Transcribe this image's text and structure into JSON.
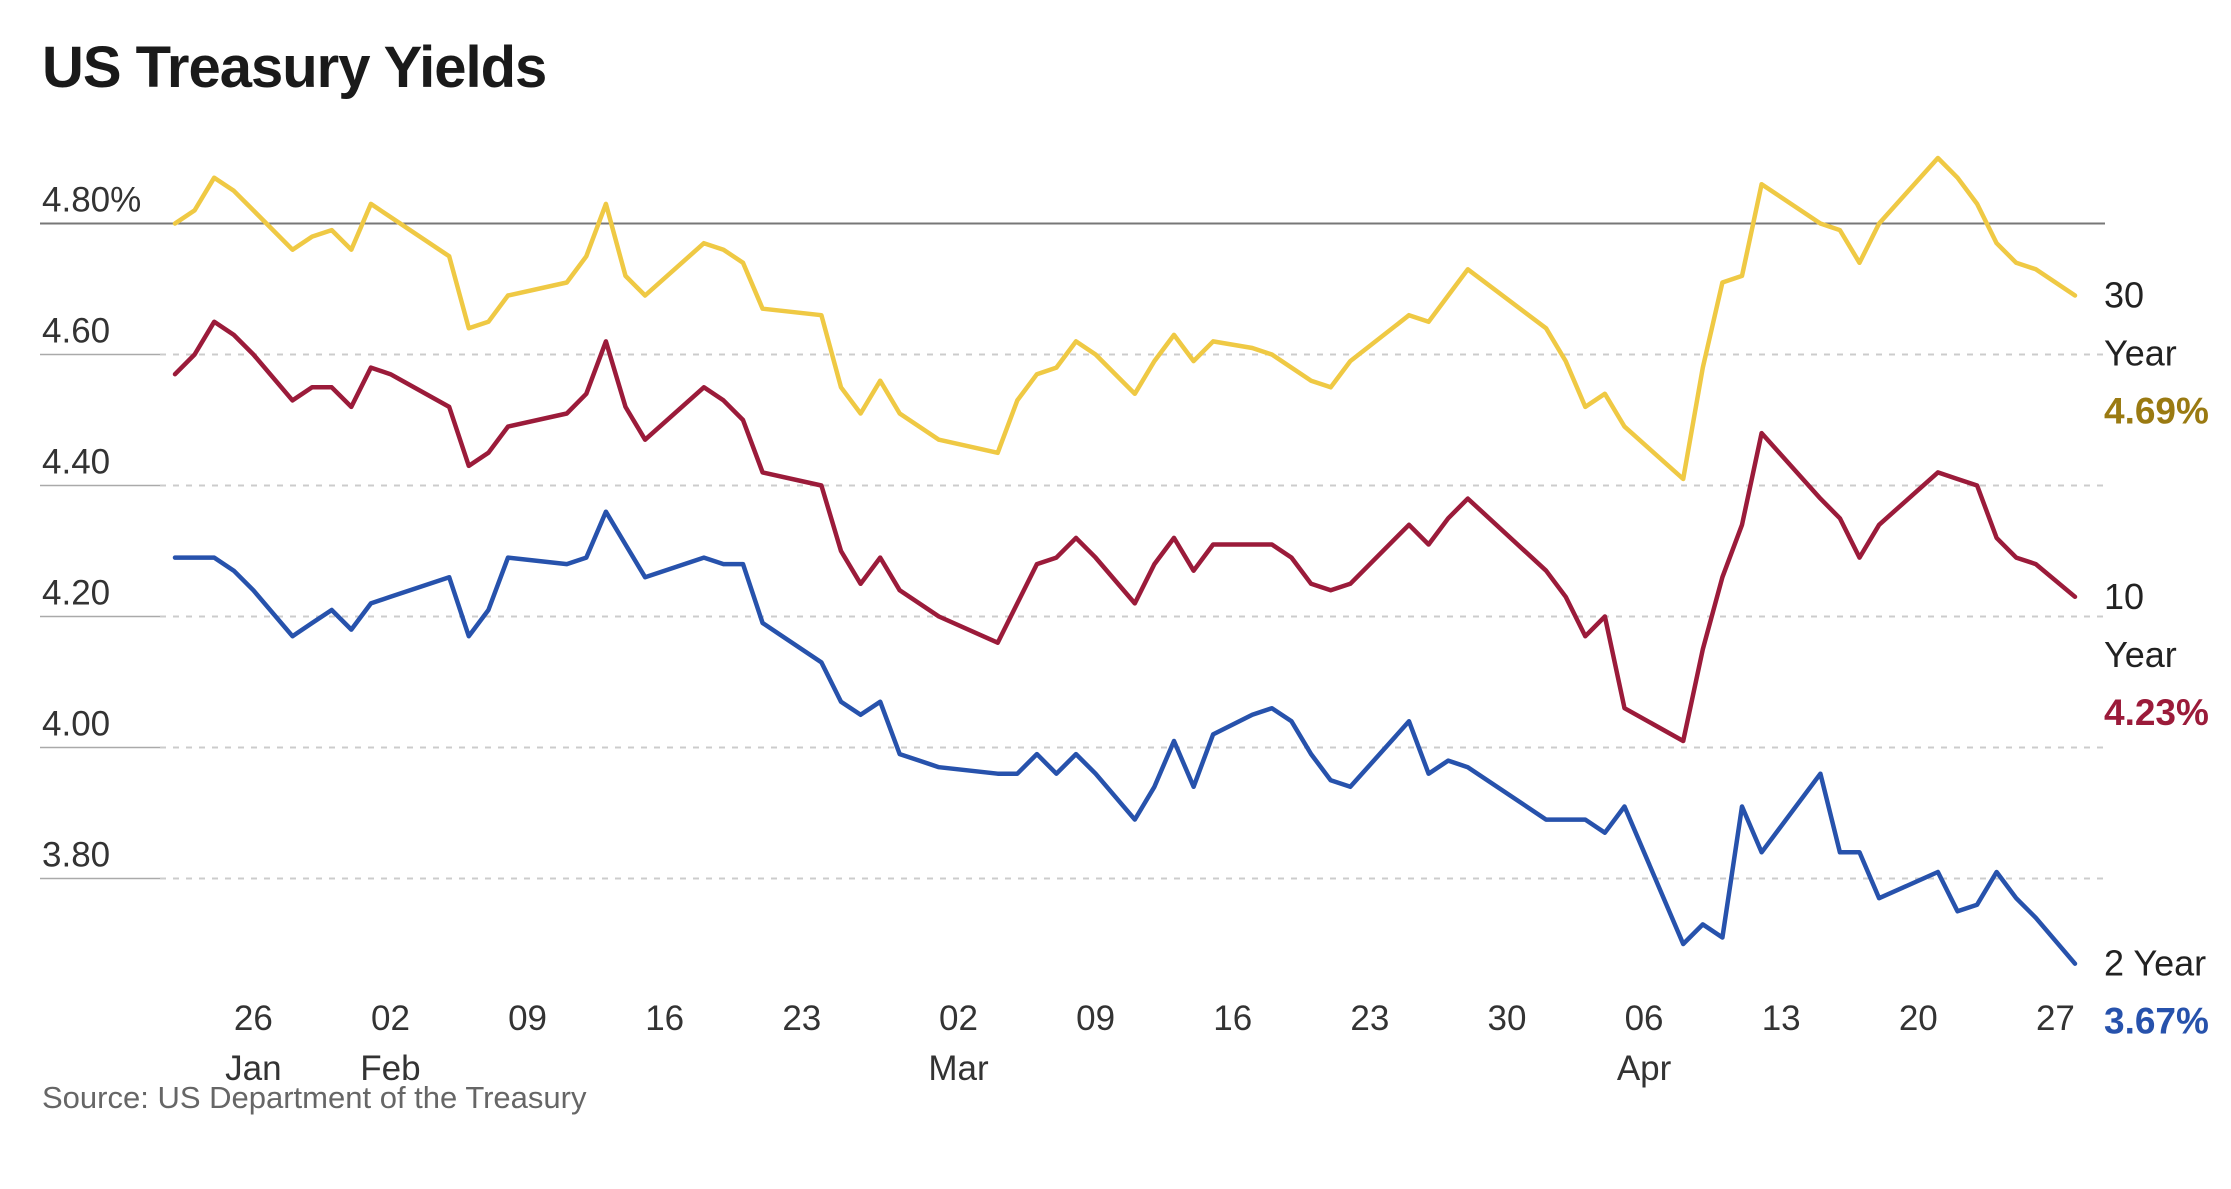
{
  "chart_data": {
    "type": "line",
    "title": "US Treasury Yields",
    "source": "Source: US Department of the Treasury",
    "ylim": [
      3.69,
      4.9
    ],
    "y_ticks": [
      {
        "value": 4.8,
        "label": "4.80%"
      },
      {
        "value": 4.6,
        "label": "4.60"
      },
      {
        "value": 4.4,
        "label": "4.40"
      },
      {
        "value": 4.2,
        "label": "4.20"
      },
      {
        "value": 4.0,
        "label": "4.00"
      },
      {
        "value": 3.8,
        "label": "3.80"
      }
    ],
    "x_ticks": [
      {
        "date": "2024-01-26",
        "label": "26",
        "sub": "Jan"
      },
      {
        "date": "2024-02-02",
        "label": "02",
        "sub": "Feb"
      },
      {
        "date": "2024-02-09",
        "label": "09",
        "sub": ""
      },
      {
        "date": "2024-02-16",
        "label": "16",
        "sub": ""
      },
      {
        "date": "2024-02-23",
        "label": "23",
        "sub": ""
      },
      {
        "date": "2024-03-02",
        "label": "02",
        "sub": "Mar"
      },
      {
        "date": "2024-03-09",
        "label": "09",
        "sub": ""
      },
      {
        "date": "2024-03-16",
        "label": "16",
        "sub": ""
      },
      {
        "date": "2024-03-23",
        "label": "23",
        "sub": ""
      },
      {
        "date": "2024-03-30",
        "label": "30",
        "sub": ""
      },
      {
        "date": "2024-04-06",
        "label": "06",
        "sub": "Apr"
      },
      {
        "date": "2024-04-13",
        "label": "13",
        "sub": ""
      },
      {
        "date": "2024-04-20",
        "label": "20",
        "sub": ""
      },
      {
        "date": "2024-04-27",
        "label": "27",
        "sub": ""
      }
    ],
    "x": [
      "2024-01-22",
      "2024-01-23",
      "2024-01-24",
      "2024-01-25",
      "2024-01-26",
      "2024-01-28",
      "2024-01-29",
      "2024-01-30",
      "2024-01-31",
      "2024-02-01",
      "2024-02-02",
      "2024-02-05",
      "2024-02-06",
      "2024-02-07",
      "2024-02-08",
      "2024-02-11",
      "2024-02-12",
      "2024-02-13",
      "2024-02-14",
      "2024-02-15",
      "2024-02-18",
      "2024-02-19",
      "2024-02-20",
      "2024-02-21",
      "2024-02-24",
      "2024-02-25",
      "2024-02-26",
      "2024-02-27",
      "2024-02-28",
      "2024-02-29",
      "2024-03-01",
      "2024-03-04",
      "2024-03-05",
      "2024-03-06",
      "2024-03-07",
      "2024-03-08",
      "2024-03-09",
      "2024-03-11",
      "2024-03-12",
      "2024-03-13",
      "2024-03-14",
      "2024-03-15",
      "2024-03-17",
      "2024-03-18",
      "2024-03-19",
      "2024-03-20",
      "2024-03-21",
      "2024-03-22",
      "2024-03-25",
      "2024-03-26",
      "2024-03-27",
      "2024-03-28",
      "2024-04-01",
      "2024-04-02",
      "2024-04-03",
      "2024-04-04",
      "2024-04-05",
      "2024-04-08",
      "2024-04-09",
      "2024-04-10",
      "2024-04-11",
      "2024-04-12",
      "2024-04-15",
      "2024-04-16",
      "2024-04-17",
      "2024-04-18",
      "2024-04-21",
      "2024-04-22",
      "2024-04-23",
      "2024-04-24",
      "2024-04-25",
      "2024-04-26",
      "2024-04-28"
    ],
    "series": [
      {
        "name": "30 Year",
        "label_line1": "30",
        "label_line2": "Year",
        "last_label": "4.69%",
        "color": "#efc944",
        "label_color": "#9a7a12",
        "values": [
          4.8,
          4.82,
          4.87,
          4.85,
          4.82,
          4.76,
          4.78,
          4.79,
          4.76,
          4.83,
          4.81,
          4.75,
          4.64,
          4.65,
          4.69,
          4.71,
          4.75,
          4.83,
          4.72,
          4.69,
          4.77,
          4.76,
          4.74,
          4.67,
          4.66,
          4.55,
          4.51,
          4.56,
          4.51,
          4.49,
          4.47,
          4.45,
          4.53,
          4.57,
          4.58,
          4.62,
          4.6,
          4.54,
          4.59,
          4.63,
          4.59,
          4.62,
          4.61,
          4.6,
          4.58,
          4.56,
          4.55,
          4.59,
          4.66,
          4.65,
          4.69,
          4.73,
          4.64,
          4.59,
          4.52,
          4.54,
          4.49,
          4.41,
          4.58,
          4.71,
          4.72,
          4.86,
          4.8,
          4.79,
          4.74,
          4.8,
          4.9,
          4.87,
          4.83,
          4.77,
          4.74,
          4.73,
          4.69
        ]
      },
      {
        "name": "10 Year",
        "label_line1": "10",
        "label_line2": "Year",
        "last_label": "4.23%",
        "color": "#9b1b3a",
        "label_color": "#9b1b3a",
        "values": [
          4.57,
          4.6,
          4.65,
          4.63,
          4.6,
          4.53,
          4.55,
          4.55,
          4.52,
          4.58,
          4.57,
          4.52,
          4.43,
          4.45,
          4.49,
          4.51,
          4.54,
          4.62,
          4.52,
          4.47,
          4.55,
          4.53,
          4.5,
          4.42,
          4.4,
          4.3,
          4.25,
          4.29,
          4.24,
          4.22,
          4.2,
          4.16,
          4.22,
          4.28,
          4.29,
          4.32,
          4.29,
          4.22,
          4.28,
          4.32,
          4.27,
          4.31,
          4.31,
          4.31,
          4.29,
          4.25,
          4.24,
          4.25,
          4.34,
          4.31,
          4.35,
          4.38,
          4.27,
          4.23,
          4.17,
          4.2,
          4.06,
          4.01,
          4.15,
          4.26,
          4.34,
          4.48,
          4.38,
          4.35,
          4.29,
          4.34,
          4.42,
          4.41,
          4.4,
          4.32,
          4.29,
          4.28,
          4.23
        ]
      },
      {
        "name": "2 Year",
        "label_line1": "2 Year",
        "label_line2": "",
        "last_label": "3.67%",
        "color": "#2752ac",
        "label_color": "#2752ac",
        "values": [
          4.29,
          4.29,
          4.29,
          4.27,
          4.24,
          4.17,
          4.19,
          4.21,
          4.18,
          4.22,
          4.23,
          4.26,
          4.17,
          4.21,
          4.29,
          4.28,
          4.29,
          4.36,
          4.31,
          4.26,
          4.29,
          4.28,
          4.28,
          4.19,
          4.13,
          4.07,
          4.05,
          4.07,
          3.99,
          3.98,
          3.97,
          3.96,
          3.96,
          3.99,
          3.96,
          3.99,
          3.96,
          3.89,
          3.94,
          4.01,
          3.94,
          4.02,
          4.05,
          4.06,
          4.04,
          3.99,
          3.95,
          3.94,
          4.04,
          3.96,
          3.98,
          3.97,
          3.89,
          3.89,
          3.89,
          3.87,
          3.91,
          3.7,
          3.73,
          3.71,
          3.91,
          3.84,
          3.96,
          3.84,
          3.84,
          3.77,
          3.81,
          3.75,
          3.76,
          3.81,
          3.77,
          3.74,
          3.67
        ]
      }
    ]
  }
}
